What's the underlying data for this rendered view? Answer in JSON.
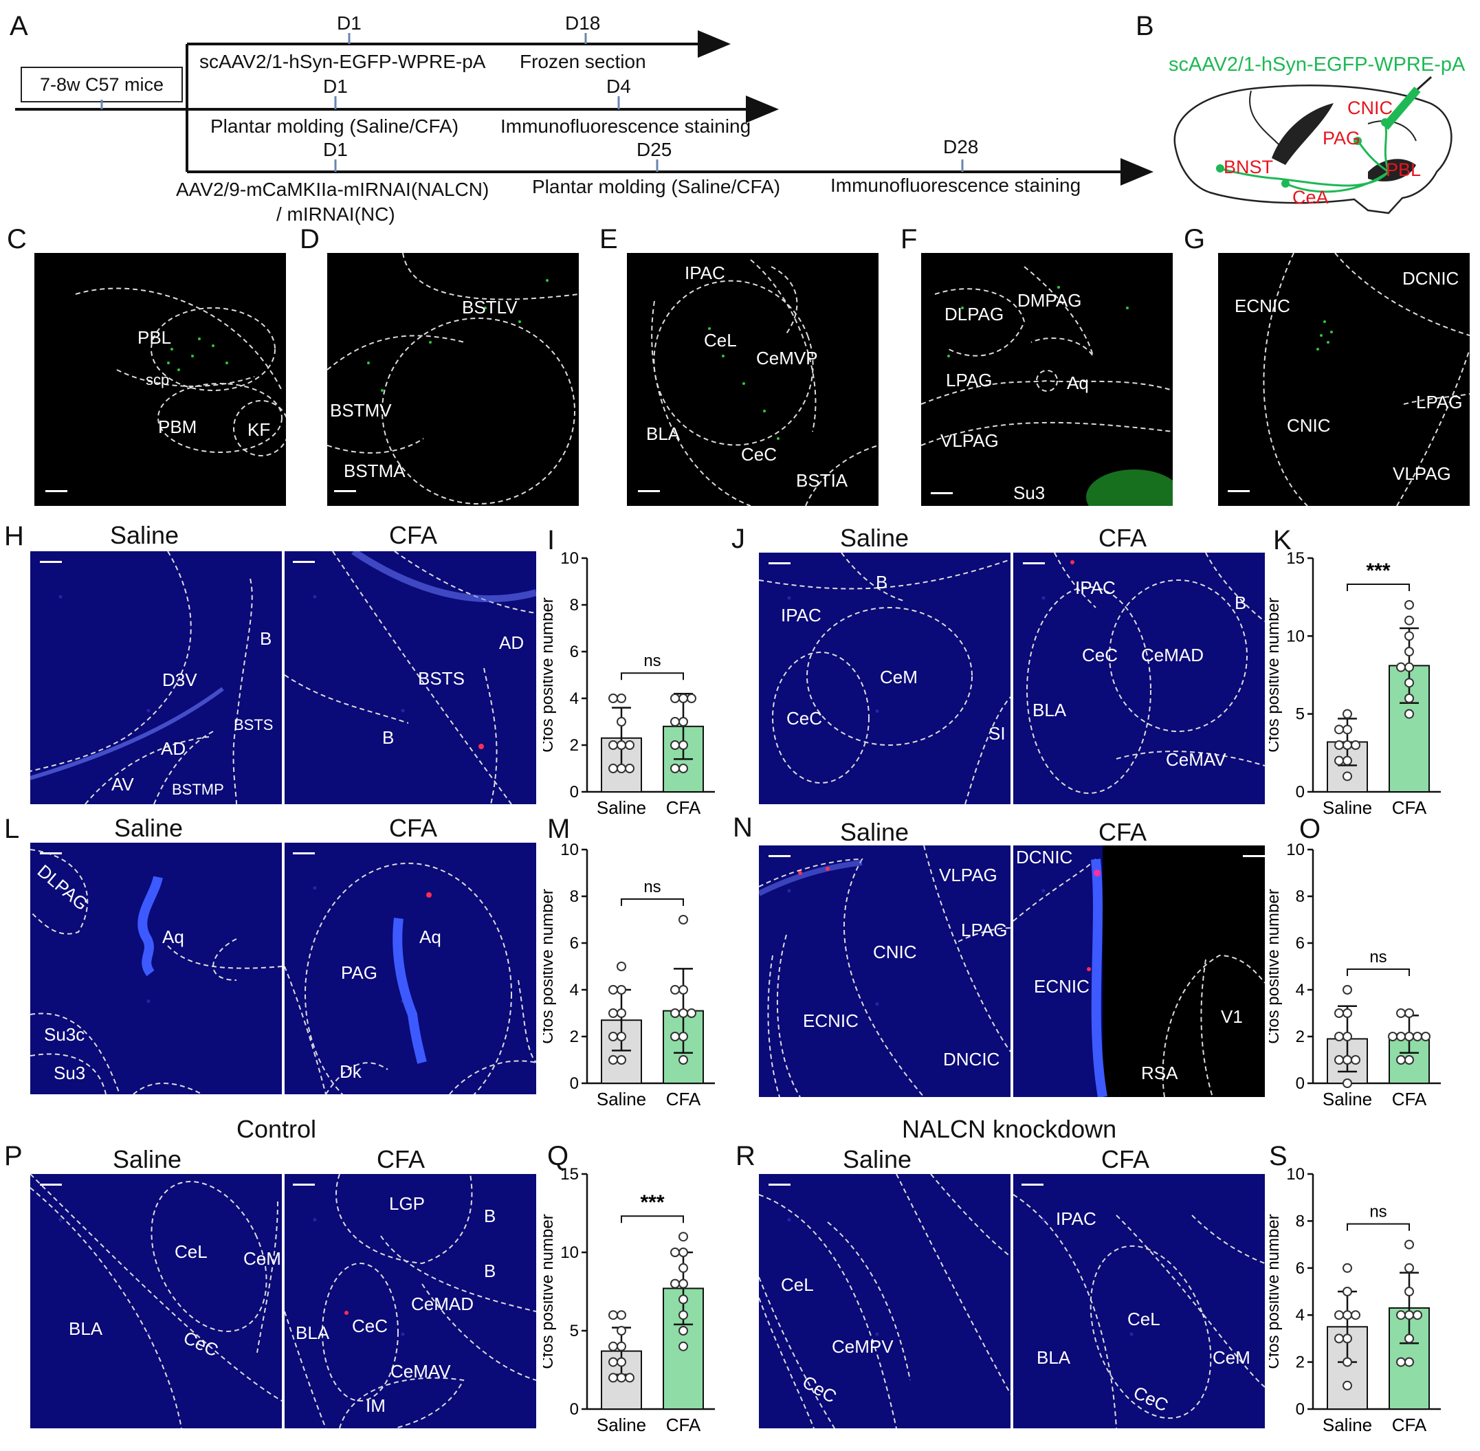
{
  "panel_letters": [
    "A",
    "B",
    "C",
    "D",
    "E",
    "F",
    "G",
    "H",
    "I",
    "J",
    "K",
    "L",
    "M",
    "N",
    "O",
    "P",
    "Q",
    "R",
    "S"
  ],
  "timeline": {
    "mice": "7-8w C57 mice",
    "row1": {
      "d1": "D1",
      "d18": "D18",
      "virus": "scAAV2/1-hSyn-EGFP-WPRE-pA",
      "end": "Frozen section"
    },
    "row2": {
      "d1": "D1",
      "d4": "D4",
      "model": "Plantar molding (Saline/CFA)",
      "end": "Immunofluorescence staining"
    },
    "row3": {
      "d1": "D1",
      "d25": "D25",
      "d28": "D28",
      "virus_l1": "AAV2/9-mCaMKIIa-mIRNAI(NALCN)",
      "virus_l2": "/ mIRNAI(NC)",
      "model": "Plantar molding (Saline/CFA)",
      "end": "Immunofluorescence staining"
    }
  },
  "panel_b": {
    "virus": "scAAV2/1-hSyn-EGFP-WPRE-pA",
    "regions": [
      "CNIC",
      "PAG",
      "PBL",
      "BNST",
      "CeA"
    ]
  },
  "tracing_panels": {
    "C": [
      "PBL",
      "scp",
      "PBM",
      "KF"
    ],
    "D": [
      "BSTLV",
      "BSTMV",
      "BSTMA"
    ],
    "E": [
      "IPAC",
      "CeL",
      "CeMVP",
      "BLA",
      "CeC",
      "BSTIA"
    ],
    "F": [
      "DLPAG",
      "DMPAG",
      "LPAG",
      "Aq",
      "VLPAG",
      "Su3"
    ],
    "G": [
      "DCNIC",
      "ECNIC",
      "CNIC",
      "LPAG",
      "VLPAG"
    ]
  },
  "conditions": {
    "saline": "Saline",
    "cfa": "CFA",
    "control": "Control",
    "knockdown": "NALCN knockdown"
  },
  "if_panels": {
    "H_saline": [
      "B",
      "D3V",
      "BSTS",
      "AD",
      "AV",
      "BSTMP"
    ],
    "H_cfa": [
      "AD",
      "BSTS",
      "B"
    ],
    "J_saline": [
      "B",
      "IPAC",
      "CeM",
      "CeC",
      "SI"
    ],
    "J_cfa": [
      "IPAC",
      "B",
      "CeC",
      "CeMAD",
      "BLA",
      "CeMAV"
    ],
    "L_saline": [
      "DLPAG",
      "Aq",
      "Su3c",
      "Su3"
    ],
    "L_cfa": [
      "Aq",
      "PAG",
      "Dk"
    ],
    "N_saline": [
      "VLPAG",
      "LPAG",
      "CNIC",
      "ECNIC",
      "DNCIC"
    ],
    "N_cfa": [
      "DCNIC",
      "ECNIC",
      "RSA",
      "V1"
    ],
    "P_saline": [
      "CeL",
      "CeM",
      "BLA",
      "CeC"
    ],
    "P_cfa": [
      "LGP",
      "B",
      "B",
      "CeC",
      "CeMAD",
      "BLA",
      "CeMAV",
      "IM"
    ],
    "R_saline": [
      "CeL",
      "CeMPV",
      "CeC"
    ],
    "R_cfa": [
      "IPAC",
      "CeL",
      "BLA",
      "CeM",
      "CeC"
    ]
  },
  "colors": {
    "green_label": "#1db954",
    "red_label": "#e8141e",
    "saline_bar": "#dcdcdc",
    "cfa_bar": "#8fdca6",
    "dapi": "#0a0a78"
  },
  "chart_data": [
    {
      "panel": "I",
      "type": "bar",
      "categories": [
        "Saline",
        "CFA"
      ],
      "values": [
        2.3,
        2.8
      ],
      "errors": [
        1.3,
        1.4
      ],
      "points": [
        [
          4,
          3,
          2,
          2,
          2,
          1,
          1,
          1,
          4
        ],
        [
          4,
          3,
          3,
          2,
          2,
          1,
          1,
          4,
          4
        ]
      ],
      "ylabel": "Cfos positive number",
      "ylim": [
        0,
        10
      ],
      "yticks": [
        0,
        2,
        4,
        6,
        8,
        10
      ],
      "significance": "ns"
    },
    {
      "panel": "K",
      "type": "bar",
      "categories": [
        "Saline",
        "CFA"
      ],
      "values": [
        3.2,
        8.1
      ],
      "errors": [
        1.5,
        2.4
      ],
      "points": [
        [
          4,
          3,
          3,
          3,
          2,
          2,
          5,
          1,
          4
        ],
        [
          12,
          11,
          10,
          9,
          8,
          7,
          6,
          5,
          8
        ]
      ],
      "ylabel": "Cfos positive number",
      "ylim": [
        0,
        15
      ],
      "yticks": [
        0,
        5,
        10,
        15
      ],
      "significance": "***"
    },
    {
      "panel": "M",
      "type": "bar",
      "categories": [
        "Saline",
        "CFA"
      ],
      "values": [
        2.7,
        3.1
      ],
      "errors": [
        1.3,
        1.8
      ],
      "points": [
        [
          5,
          4,
          3,
          3,
          2,
          2,
          1,
          1,
          4
        ],
        [
          7,
          4,
          4,
          3,
          3,
          2,
          2,
          1,
          3
        ]
      ],
      "ylabel": "Cfos positive number",
      "ylim": [
        0,
        10
      ],
      "yticks": [
        0,
        2,
        4,
        6,
        8,
        10
      ],
      "significance": "ns"
    },
    {
      "panel": "O",
      "type": "bar",
      "categories": [
        "Saline",
        "CFA"
      ],
      "values": [
        1.9,
        2.1
      ],
      "errors": [
        1.4,
        0.8
      ],
      "points": [
        [
          4,
          3,
          3,
          2,
          1,
          1,
          1,
          0,
          2
        ],
        [
          3,
          3,
          2,
          2,
          2,
          2,
          1,
          1,
          2
        ]
      ],
      "ylabel": "Cfos positive number",
      "ylim": [
        0,
        10
      ],
      "yticks": [
        0,
        2,
        4,
        6,
        8,
        10
      ],
      "significance": "ns"
    },
    {
      "panel": "Q",
      "type": "bar",
      "categories": [
        "Saline",
        "CFA"
      ],
      "values": [
        3.7,
        7.7
      ],
      "errors": [
        1.5,
        2.3
      ],
      "points": [
        [
          6,
          6,
          5,
          4,
          4,
          3,
          3,
          2,
          2,
          2
        ],
        [
          11,
          10,
          10,
          9,
          8,
          8,
          7,
          6,
          5,
          4
        ]
      ],
      "ylabel": "Cfos positive number",
      "ylim": [
        0,
        15
      ],
      "yticks": [
        0,
        5,
        10,
        15
      ],
      "significance": "***"
    },
    {
      "panel": "S",
      "type": "bar",
      "categories": [
        "Saline",
        "CFA"
      ],
      "values": [
        3.5,
        4.3
      ],
      "errors": [
        1.5,
        1.5
      ],
      "points": [
        [
          6,
          5,
          4,
          4,
          4,
          3,
          3,
          2,
          1
        ],
        [
          7,
          6,
          5,
          4,
          4,
          4,
          3,
          2,
          2
        ]
      ],
      "ylabel": "Cfos positive number",
      "ylim": [
        0,
        10
      ],
      "yticks": [
        0,
        2,
        4,
        6,
        8,
        10
      ],
      "significance": "ns"
    }
  ]
}
